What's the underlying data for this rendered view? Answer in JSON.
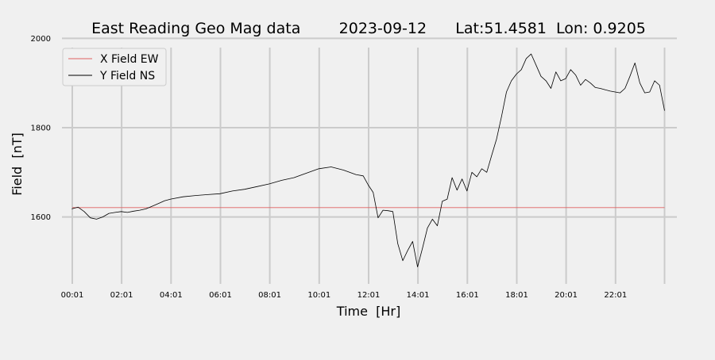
{
  "chart_data": {
    "type": "line",
    "title": "East Reading Geo Mag data        2023-09-12      Lat:51.4581  Lon: 0.9205",
    "xlabel": "Time  [Hr]",
    "ylabel": "Field  [nT]",
    "x_unit": "hours",
    "xlim": [
      -0.4,
      24.5
    ],
    "ylim": [
      1450,
      2015
    ],
    "x_ticks": [
      0.0167,
      2.0167,
      4.0167,
      6.0167,
      8.0167,
      10.0167,
      12.0167,
      14.0167,
      16.0167,
      18.0167,
      20.0167,
      22.0167,
      24.0
    ],
    "x_tick_labels": [
      "00:01",
      "02:01",
      "04:01",
      "06:01",
      "08:01",
      "10:01",
      "12:01",
      "14:01",
      "16:01",
      "18:01",
      "20:01",
      "22:01",
      ""
    ],
    "y_ticks": [
      1600,
      1800,
      2000
    ],
    "y_tick_labels": [
      "1600",
      "1800",
      "2000"
    ],
    "grid": true,
    "legend_position": "top-left",
    "series": [
      {
        "name": "X Field EW",
        "color": "#e06060",
        "x": [
          0.0167,
          24.0
        ],
        "y": [
          1621,
          1621
        ]
      },
      {
        "name": "Y Field NS",
        "color": "#000000",
        "x": [
          0.0,
          0.25,
          0.5,
          0.75,
          1.0,
          1.25,
          1.5,
          1.75,
          2.0,
          2.25,
          2.5,
          2.75,
          3.0,
          3.25,
          3.5,
          3.75,
          4.0,
          4.5,
          5.0,
          5.5,
          6.0,
          6.5,
          7.0,
          7.5,
          8.0,
          8.5,
          9.0,
          9.5,
          10.0,
          10.5,
          11.0,
          11.5,
          11.8,
          12.0,
          12.2,
          12.4,
          12.6,
          12.8,
          13.0,
          13.2,
          13.4,
          13.6,
          13.8,
          14.0,
          14.2,
          14.4,
          14.6,
          14.8,
          15.0,
          15.2,
          15.4,
          15.6,
          15.8,
          16.0,
          16.2,
          16.4,
          16.6,
          16.8,
          17.0,
          17.2,
          17.4,
          17.6,
          17.8,
          18.0,
          18.2,
          18.4,
          18.6,
          18.8,
          19.0,
          19.2,
          19.4,
          19.6,
          19.8,
          20.0,
          20.2,
          20.4,
          20.6,
          20.8,
          21.0,
          21.2,
          21.4,
          21.6,
          21.8,
          22.0,
          22.2,
          22.4,
          22.6,
          22.8,
          23.0,
          23.2,
          23.4,
          23.6,
          23.8,
          24.0
        ],
        "y": [
          1618,
          1622,
          1612,
          1598,
          1595,
          1600,
          1608,
          1610,
          1612,
          1610,
          1613,
          1615,
          1618,
          1624,
          1630,
          1636,
          1640,
          1645,
          1648,
          1650,
          1652,
          1658,
          1662,
          1668,
          1674,
          1682,
          1688,
          1698,
          1708,
          1712,
          1705,
          1695,
          1692,
          1672,
          1655,
          1598,
          1615,
          1614,
          1612,
          1540,
          1502,
          1525,
          1545,
          1488,
          1530,
          1575,
          1595,
          1580,
          1635,
          1640,
          1688,
          1660,
          1685,
          1658,
          1700,
          1690,
          1708,
          1700,
          1738,
          1775,
          1825,
          1880,
          1905,
          1920,
          1930,
          1955,
          1965,
          1940,
          1915,
          1905,
          1888,
          1925,
          1905,
          1910,
          1930,
          1918,
          1895,
          1908,
          1900,
          1890,
          1888,
          1885,
          1882,
          1880,
          1878,
          1888,
          1915,
          1945,
          1900,
          1878,
          1880,
          1905,
          1895,
          1838
        ]
      }
    ]
  }
}
